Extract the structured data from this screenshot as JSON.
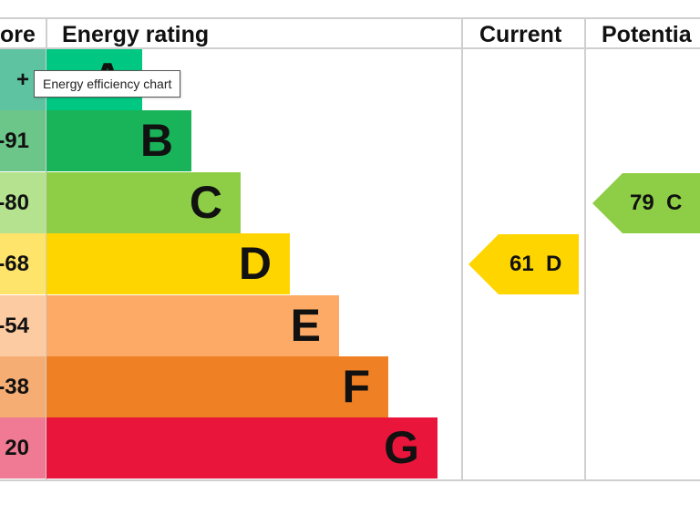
{
  "chart_data": {
    "type": "table",
    "headers": {
      "score": "ore",
      "rating": "Energy rating",
      "current": "Current",
      "potential": "Potentia"
    },
    "bands": [
      {
        "letter": "A",
        "score_label": "+",
        "color": "#00c781",
        "score_color": "#5ec3a0"
      },
      {
        "letter": "B",
        "score_label": "-91",
        "color": "#19b459",
        "score_color": "#6dc689"
      },
      {
        "letter": "C",
        "score_label": "-80",
        "color": "#8dce46",
        "score_color": "#b5e28e"
      },
      {
        "letter": "D",
        "score_label": "-68",
        "color": "#ffd500",
        "score_color": "#ffe46b"
      },
      {
        "letter": "E",
        "score_label": "-54",
        "color": "#fcaa65",
        "score_color": "#fdcba2"
      },
      {
        "letter": "F",
        "score_label": "-38",
        "color": "#ef8023",
        "score_color": "#f5ad74"
      },
      {
        "letter": "G",
        "score_label": "20",
        "color": "#e9153b",
        "score_color": "#f07a93"
      }
    ],
    "current": {
      "value": 61,
      "letter": "D",
      "color": "#ffd500"
    },
    "potential": {
      "value": 79,
      "letter": "C",
      "color": "#8dce46"
    }
  },
  "tooltip": {
    "text": "Energy efficiency chart"
  }
}
